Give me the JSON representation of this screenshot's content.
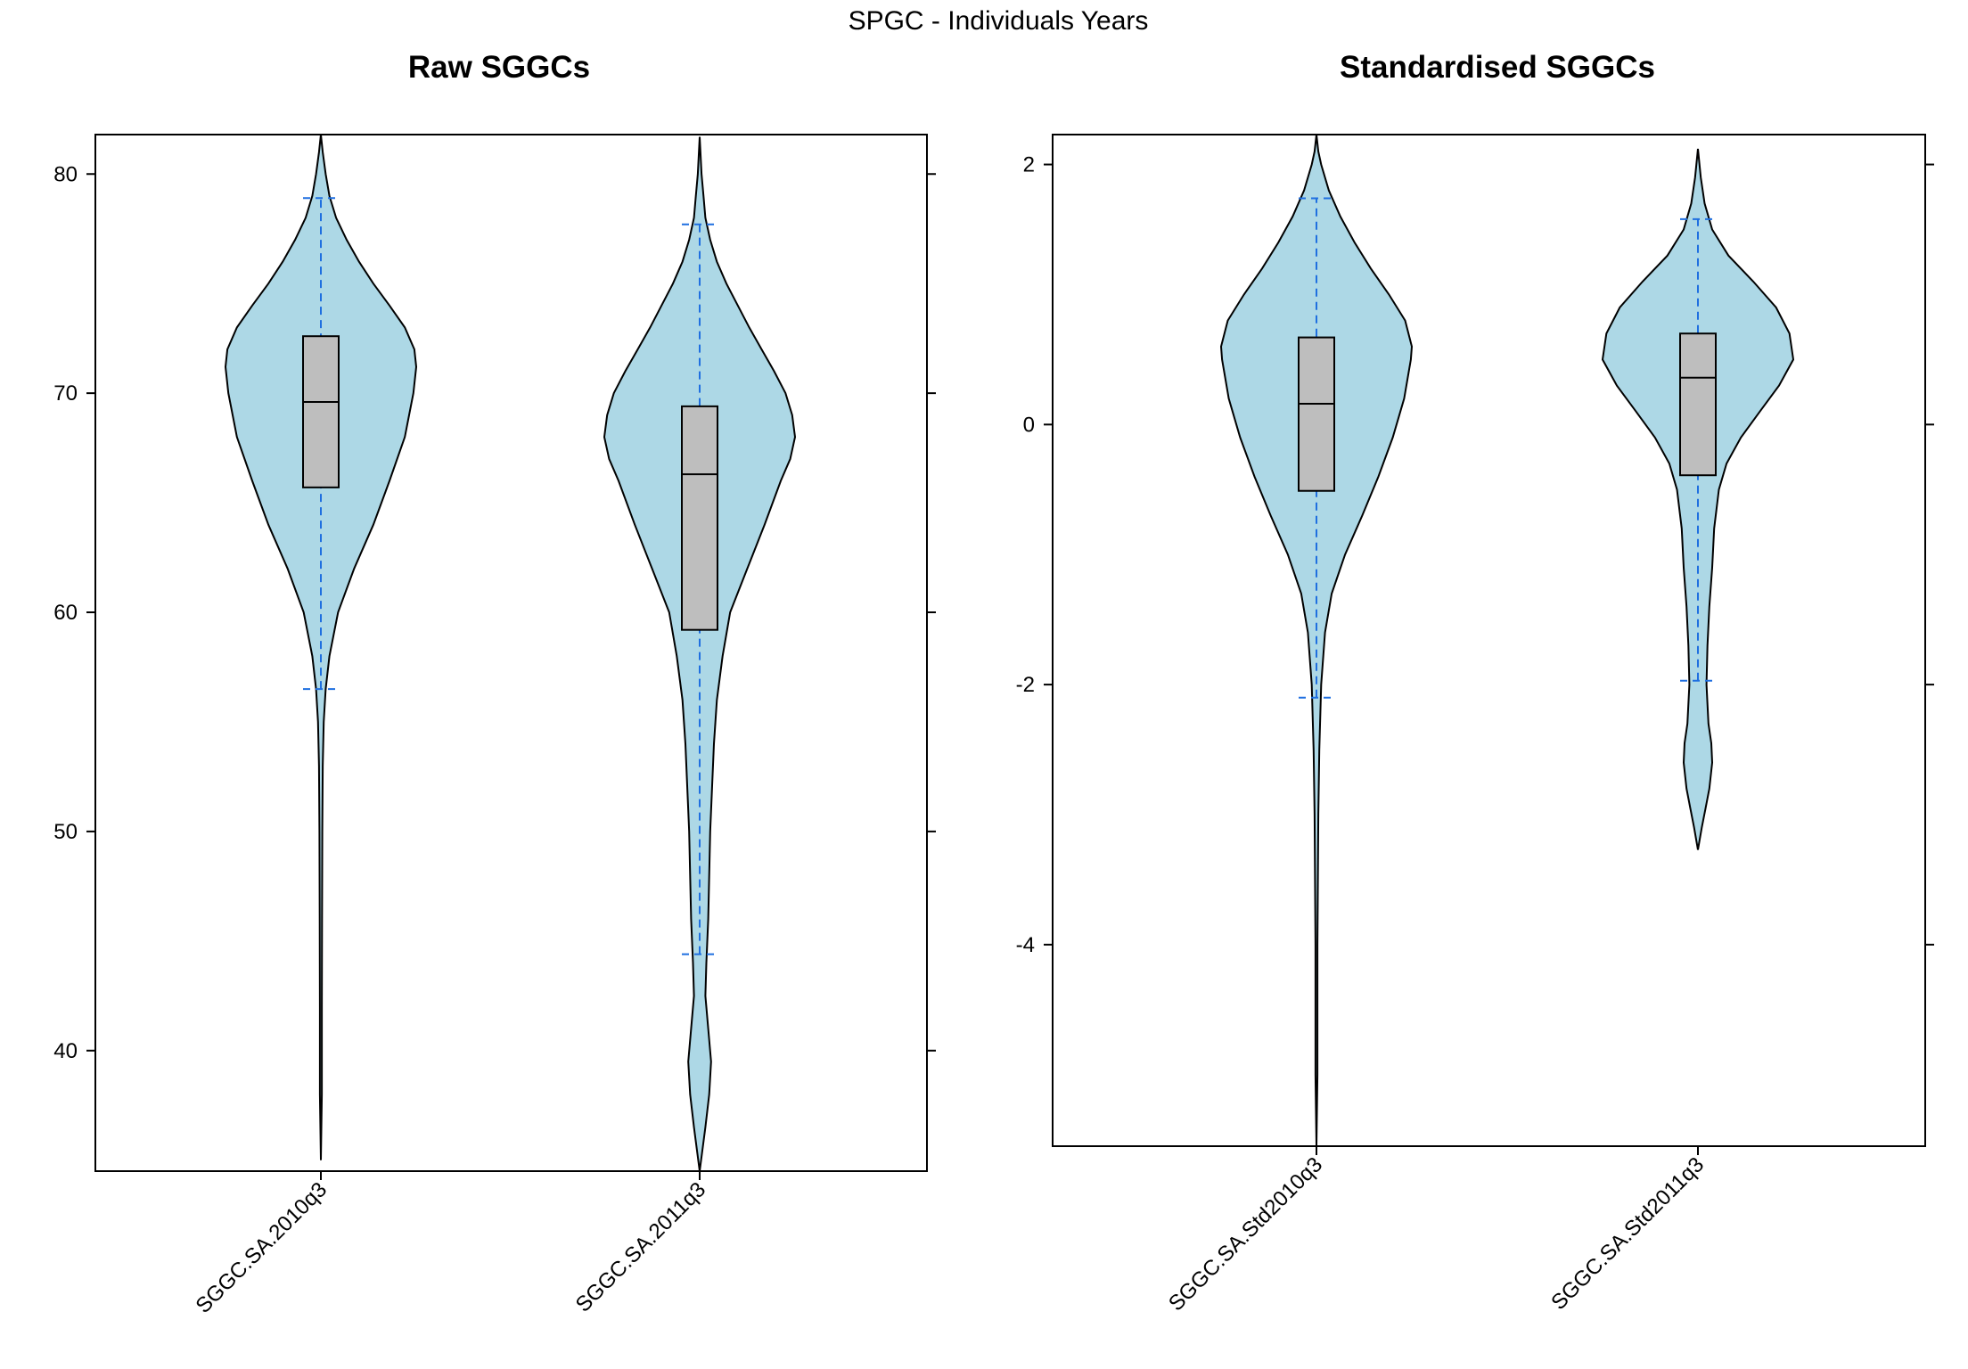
{
  "figure_title": "SPGC - Individuals Years",
  "colors": {
    "violin_fill": "#add8e6",
    "box_fill": "#bebebe",
    "whisker": "#1f6fe0",
    "outline": "#000000"
  },
  "chart_data": [
    {
      "type": "violin",
      "title": "Raw SGGCs",
      "xlabel": "",
      "ylabel": "",
      "ylim": [
        34.5,
        81.8
      ],
      "yticks": [
        40,
        50,
        60,
        70,
        80
      ],
      "ytick_labels": [
        "40",
        "50",
        "60",
        "70",
        "80"
      ],
      "grid": false,
      "categories": [
        "SGGC.SA.2010q3",
        "SGGC.SA.2011q3"
      ],
      "series": [
        {
          "category": "SGGC.SA.2010q3",
          "min": 35.0,
          "max": 81.8,
          "whisker_low": 56.5,
          "q1": 65.7,
          "median": 69.6,
          "q3": 72.6,
          "whisker_high": 78.9,
          "density": [
            [
              35.0,
              0.0
            ],
            [
              38.0,
              0.01
            ],
            [
              42.0,
              0.01
            ],
            [
              46.0,
              0.012
            ],
            [
              50.0,
              0.015
            ],
            [
              53.0,
              0.02
            ],
            [
              55.0,
              0.03
            ],
            [
              56.5,
              0.05
            ],
            [
              58.0,
              0.09
            ],
            [
              60.0,
              0.18
            ],
            [
              62.0,
              0.35
            ],
            [
              64.0,
              0.55
            ],
            [
              66.0,
              0.72
            ],
            [
              68.0,
              0.88
            ],
            [
              70.0,
              0.97
            ],
            [
              71.2,
              1.0
            ],
            [
              72.0,
              0.98
            ],
            [
              73.0,
              0.88
            ],
            [
              74.0,
              0.72
            ],
            [
              75.0,
              0.55
            ],
            [
              76.0,
              0.4
            ],
            [
              77.0,
              0.27
            ],
            [
              78.0,
              0.16
            ],
            [
              79.0,
              0.09
            ],
            [
              80.0,
              0.05
            ],
            [
              81.0,
              0.02
            ],
            [
              81.8,
              0.0
            ]
          ]
        },
        {
          "category": "SGGC.SA.2011q3",
          "min": 34.5,
          "max": 81.7,
          "whisker_low": 44.4,
          "q1": 59.2,
          "median": 66.3,
          "q3": 69.4,
          "whisker_high": 77.7,
          "density": [
            [
              34.5,
              0.0
            ],
            [
              35.5,
              0.03
            ],
            [
              36.5,
              0.06
            ],
            [
              38.0,
              0.1
            ],
            [
              39.5,
              0.12
            ],
            [
              41.0,
              0.09
            ],
            [
              42.5,
              0.06
            ],
            [
              44.0,
              0.07
            ],
            [
              46.0,
              0.09
            ],
            [
              50.0,
              0.11
            ],
            [
              54.0,
              0.15
            ],
            [
              56.0,
              0.18
            ],
            [
              58.0,
              0.24
            ],
            [
              60.0,
              0.32
            ],
            [
              62.0,
              0.5
            ],
            [
              64.0,
              0.68
            ],
            [
              66.0,
              0.85
            ],
            [
              67.0,
              0.95
            ],
            [
              68.0,
              1.0
            ],
            [
              69.0,
              0.97
            ],
            [
              70.0,
              0.9
            ],
            [
              71.0,
              0.78
            ],
            [
              72.0,
              0.65
            ],
            [
              73.0,
              0.52
            ],
            [
              74.0,
              0.4
            ],
            [
              75.0,
              0.28
            ],
            [
              76.0,
              0.18
            ],
            [
              77.0,
              0.11
            ],
            [
              78.0,
              0.06
            ],
            [
              79.0,
              0.04
            ],
            [
              80.0,
              0.02
            ],
            [
              81.7,
              0.0
            ]
          ]
        }
      ]
    },
    {
      "type": "violin",
      "title": "Standardised SGGCs",
      "xlabel": "",
      "ylabel": "",
      "ylim": [
        -5.55,
        2.23
      ],
      "yticks": [
        -4,
        -2,
        0,
        2
      ],
      "ytick_labels": [
        "-4",
        "-2",
        "0",
        "2"
      ],
      "grid": false,
      "categories": [
        "SGGC.SA.Std2010q3",
        "SGGC.SA.Std2011q3"
      ],
      "series": [
        {
          "category": "SGGC.SA.Std2010q3",
          "min": -5.55,
          "max": 2.23,
          "whisker_low": -2.1,
          "q1": -0.51,
          "median": 0.16,
          "q3": 0.67,
          "whisker_high": 1.74,
          "density": [
            [
              -5.55,
              0.0
            ],
            [
              -5.0,
              0.01
            ],
            [
              -4.0,
              0.01
            ],
            [
              -3.0,
              0.02
            ],
            [
              -2.5,
              0.03
            ],
            [
              -2.0,
              0.05
            ],
            [
              -1.6,
              0.09
            ],
            [
              -1.3,
              0.16
            ],
            [
              -1.0,
              0.3
            ],
            [
              -0.7,
              0.48
            ],
            [
              -0.4,
              0.65
            ],
            [
              -0.1,
              0.8
            ],
            [
              0.2,
              0.92
            ],
            [
              0.5,
              0.99
            ],
            [
              0.6,
              1.0
            ],
            [
              0.8,
              0.93
            ],
            [
              1.0,
              0.76
            ],
            [
              1.2,
              0.57
            ],
            [
              1.4,
              0.4
            ],
            [
              1.6,
              0.25
            ],
            [
              1.8,
              0.13
            ],
            [
              2.0,
              0.05
            ],
            [
              2.1,
              0.02
            ],
            [
              2.23,
              0.0
            ]
          ]
        },
        {
          "category": "SGGC.SA.Std2011q3",
          "min": -3.27,
          "max": 2.12,
          "whisker_low": -1.97,
          "q1": -0.39,
          "median": 0.36,
          "q3": 0.7,
          "whisker_high": 1.58,
          "density": [
            [
              -3.27,
              0.0
            ],
            [
              -3.1,
              0.04
            ],
            [
              -2.95,
              0.08
            ],
            [
              -2.8,
              0.12
            ],
            [
              -2.6,
              0.15
            ],
            [
              -2.45,
              0.14
            ],
            [
              -2.3,
              0.11
            ],
            [
              -2.0,
              0.09
            ],
            [
              -1.7,
              0.1
            ],
            [
              -1.4,
              0.12
            ],
            [
              -1.1,
              0.15
            ],
            [
              -0.8,
              0.17
            ],
            [
              -0.5,
              0.22
            ],
            [
              -0.3,
              0.3
            ],
            [
              -0.1,
              0.45
            ],
            [
              0.1,
              0.65
            ],
            [
              0.3,
              0.85
            ],
            [
              0.5,
              1.0
            ],
            [
              0.7,
              0.96
            ],
            [
              0.9,
              0.82
            ],
            [
              1.1,
              0.58
            ],
            [
              1.3,
              0.32
            ],
            [
              1.5,
              0.15
            ],
            [
              1.7,
              0.07
            ],
            [
              1.9,
              0.03
            ],
            [
              2.12,
              0.0
            ]
          ]
        }
      ]
    }
  ]
}
